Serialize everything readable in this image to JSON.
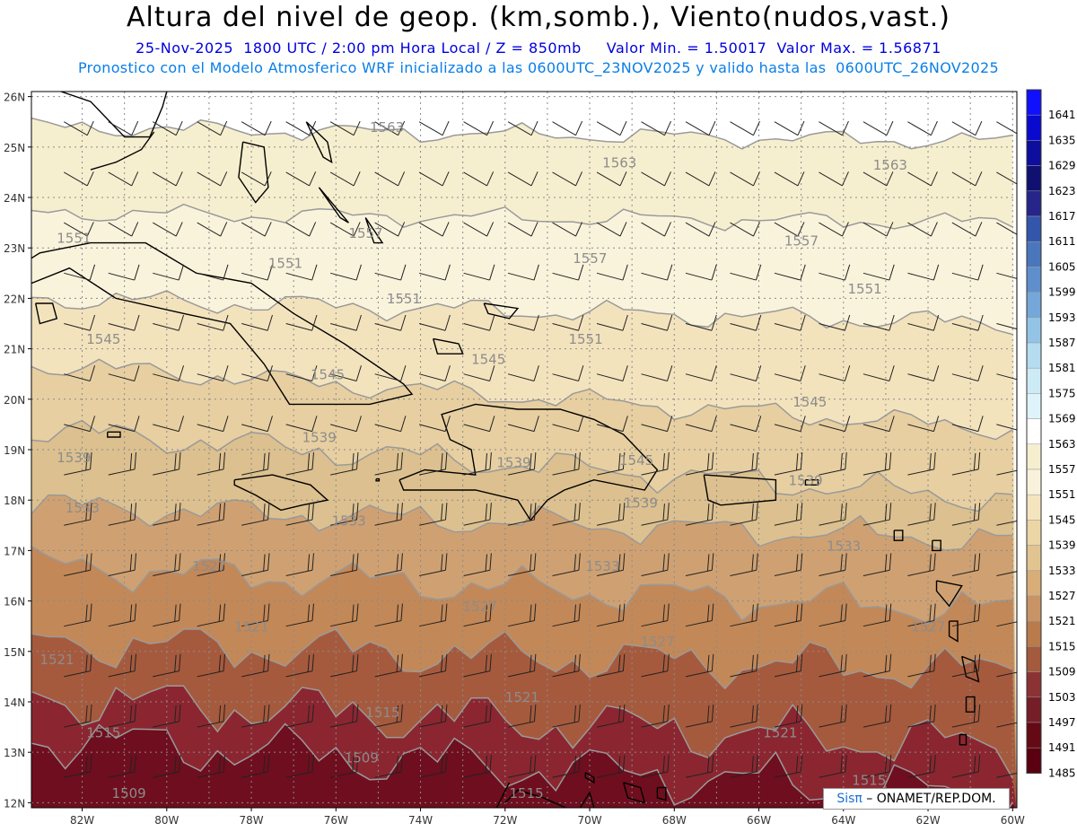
{
  "header": {
    "title": "Altura del nivel de geop. (km,somb.), Viento(nudos,vast.)",
    "valid_time": "25-Nov-2025  1800 UTC / 2:00 pm Hora Local / Z = 850mb     Valor Min. = 1.50017  Valor Max. = 1.56871",
    "model_info": "Pronostico con el Modelo Atmosferico WRF inicializado a las 0600UTC_23NOV2025 y valido hasta las  0600UTC_26NOV2025"
  },
  "axes": {
    "lat_labels": [
      "26N",
      "25N",
      "24N",
      "23N",
      "22N",
      "21N",
      "20N",
      "19N",
      "18N",
      "17N",
      "16N",
      "15N",
      "14N",
      "13N",
      "12N"
    ],
    "lon_labels": [
      "82W",
      "80W",
      "78W",
      "76W",
      "74W",
      "72W",
      "70W",
      "68W",
      "66W",
      "64W",
      "62W",
      "60W"
    ]
  },
  "colorbar": {
    "levels": [
      "1641",
      "1635",
      "1629",
      "1623",
      "1617",
      "1611",
      "1605",
      "1599",
      "1593",
      "1587",
      "1581",
      "1575",
      "1569",
      "1563",
      "1557",
      "1551",
      "1545",
      "1539",
      "1533",
      "1527",
      "1521",
      "1515",
      "1509",
      "1503",
      "1497",
      "1491",
      "1485"
    ],
    "colors": [
      "#1010ff",
      "#0a0acf",
      "#0d0d9e",
      "#101070",
      "#25258a",
      "#3355aa",
      "#4a77bb",
      "#5e8fcc",
      "#75a7d8",
      "#93c4e6",
      "#b5dcef",
      "#cdebf5",
      "#dff3fa",
      "#ffffff",
      "#f6efcf",
      "#f8f2dc",
      "#f4e5bf",
      "#ecd6a6",
      "#e2c491",
      "#d8ad78",
      "#c99465",
      "#b97b4c",
      "#a35a3d",
      "#8b3334",
      "#761e28",
      "#650914",
      "#5a0010"
    ]
  },
  "bands": [
    {
      "level": "1563",
      "color": "#ffffff"
    },
    {
      "level": "1557",
      "color": "#f6efcf"
    },
    {
      "level": "1551",
      "color": "#faf3dc"
    },
    {
      "level": "1545",
      "color": "#f3e3bd"
    },
    {
      "level": "1539",
      "color": "#e7cfa1"
    },
    {
      "level": "1533",
      "color": "#dcc08f"
    },
    {
      "level": "1527",
      "color": "#cfa172"
    },
    {
      "level": "1521",
      "color": "#c38858"
    },
    {
      "level": "1515",
      "color": "#a65a3d"
    },
    {
      "level": "1509",
      "color": "#8b2630"
    },
    {
      "level": "1503",
      "color": "#6f0e1e"
    }
  ],
  "contour_labels": [
    {
      "text": "1563",
      "lon": -75.2,
      "lat": 25.3
    },
    {
      "text": "1563",
      "lon": -69.7,
      "lat": 24.6
    },
    {
      "text": "1563",
      "lon": -63.3,
      "lat": 24.55
    },
    {
      "text": "1557",
      "lon": -75.7,
      "lat": 23.2
    },
    {
      "text": "1557",
      "lon": -70.4,
      "lat": 22.7
    },
    {
      "text": "1557",
      "lon": -65.4,
      "lat": 23.05
    },
    {
      "text": "1551",
      "lon": -82.6,
      "lat": 23.1
    },
    {
      "text": "1551",
      "lon": -77.6,
      "lat": 22.6
    },
    {
      "text": "1551",
      "lon": -74.8,
      "lat": 21.9
    },
    {
      "text": "1551",
      "lon": -70.5,
      "lat": 21.1
    },
    {
      "text": "1551",
      "lon": -63.9,
      "lat": 22.1
    },
    {
      "text": "1545",
      "lon": -81.9,
      "lat": 21.1
    },
    {
      "text": "1545",
      "lon": -76.6,
      "lat": 20.4
    },
    {
      "text": "1545",
      "lon": -72.8,
      "lat": 20.7
    },
    {
      "text": "1545",
      "lon": -69.3,
      "lat": 18.7
    },
    {
      "text": "1545",
      "lon": -65.2,
      "lat": 19.85
    },
    {
      "text": "1539",
      "lon": -82.6,
      "lat": 18.75
    },
    {
      "text": "1539",
      "lon": -76.8,
      "lat": 19.15
    },
    {
      "text": "1539",
      "lon": -72.2,
      "lat": 18.65
    },
    {
      "text": "1539",
      "lon": -69.2,
      "lat": 17.85
    },
    {
      "text": "1539",
      "lon": -65.3,
      "lat": 18.3
    },
    {
      "text": "1533",
      "lon": -82.4,
      "lat": 17.75
    },
    {
      "text": "1533",
      "lon": -76.1,
      "lat": 17.5
    },
    {
      "text": "1533",
      "lon": -70.1,
      "lat": 16.6
    },
    {
      "text": "1533",
      "lon": -64.4,
      "lat": 17.0
    },
    {
      "text": "1527",
      "lon": -79.4,
      "lat": 16.6
    },
    {
      "text": "1527",
      "lon": -73.0,
      "lat": 15.8
    },
    {
      "text": "1527",
      "lon": -68.8,
      "lat": 15.1
    },
    {
      "text": "1527",
      "lon": -62.4,
      "lat": 15.4
    },
    {
      "text": "1521",
      "lon": -83.0,
      "lat": 14.75
    },
    {
      "text": "1521",
      "lon": -78.4,
      "lat": 15.4
    },
    {
      "text": "1521",
      "lon": -72.0,
      "lat": 14.0
    },
    {
      "text": "1521",
      "lon": -65.9,
      "lat": 13.3
    },
    {
      "text": "1515",
      "lon": -81.9,
      "lat": 13.3
    },
    {
      "text": "1515",
      "lon": -75.3,
      "lat": 13.7
    },
    {
      "text": "1515",
      "lon": -71.9,
      "lat": 12.1
    },
    {
      "text": "1515",
      "lon": -63.8,
      "lat": 12.35
    },
    {
      "text": "1509",
      "lon": -75.8,
      "lat": 12.8
    },
    {
      "text": "1509",
      "lon": -81.3,
      "lat": 12.1
    }
  ],
  "credit": {
    "brand": "Sisπ",
    "text": " –  ONAMET/REP.DOM."
  }
}
